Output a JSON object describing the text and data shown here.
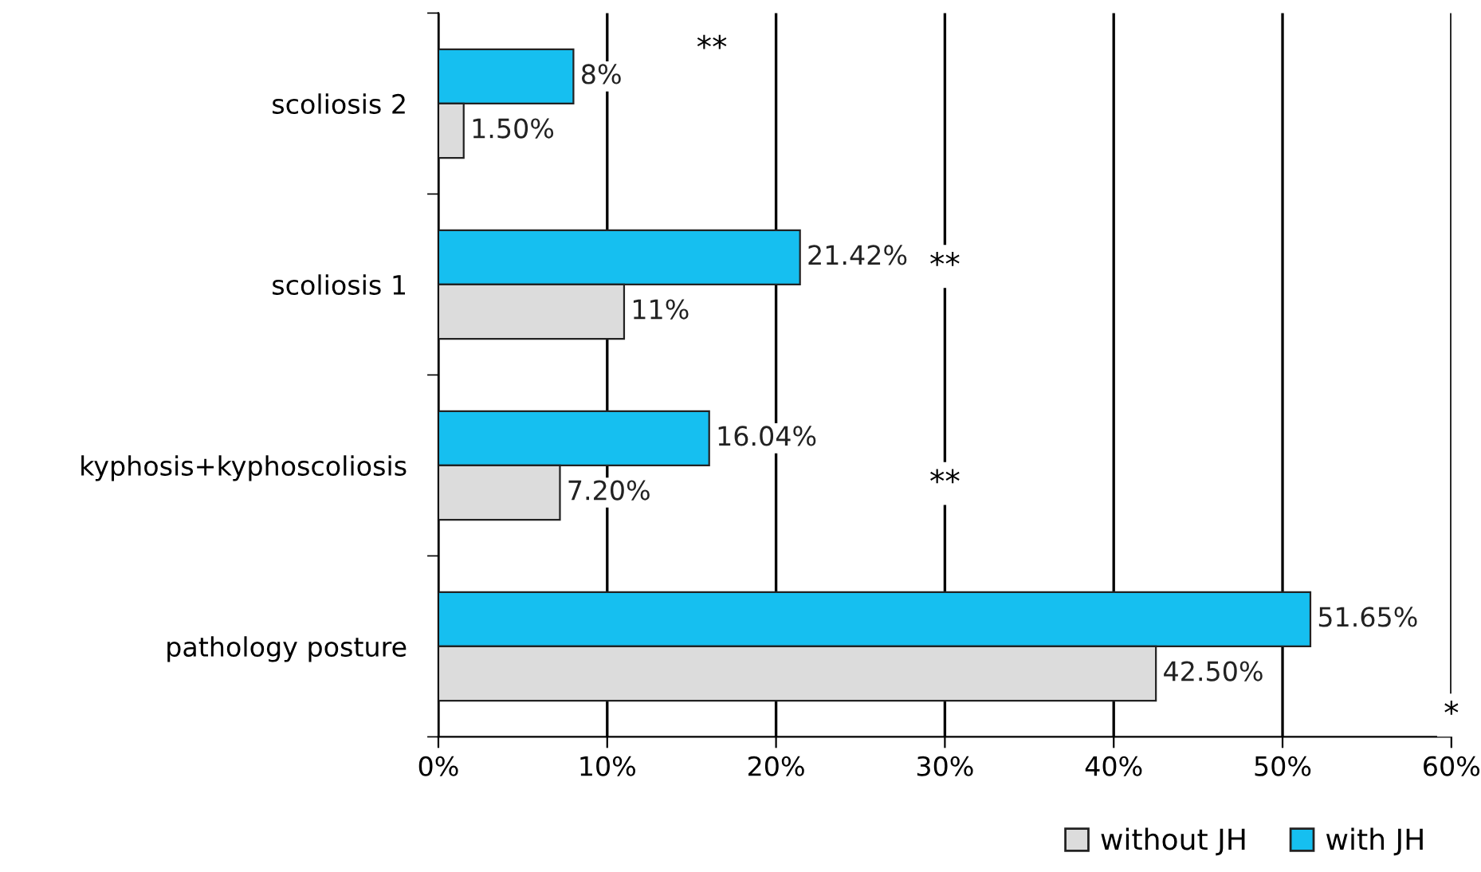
{
  "chart_data": {
    "type": "bar",
    "orientation": "horizontal",
    "categories": [
      "scoliosis 2",
      "scoliosis 1",
      "kyphosis+kyphoscoliosis",
      "pathology posture"
    ],
    "series": [
      {
        "name": "with JH",
        "color": "#16bff0",
        "values": [
          8,
          21.42,
          16.04,
          51.65
        ],
        "value_labels": [
          "8%",
          "21.42%",
          "16.04%",
          "51.65%"
        ]
      },
      {
        "name": "without JH",
        "color": "#dcdcdc",
        "values": [
          1.5,
          11,
          7.2,
          42.5
        ],
        "value_labels": [
          "1.50%",
          "11%",
          "7.20%",
          "42.50%"
        ]
      }
    ],
    "xlim": [
      0,
      60
    ],
    "xticks": [
      {
        "value": 0,
        "label": "0%"
      },
      {
        "value": 10,
        "label": "10%"
      },
      {
        "value": 20,
        "label": "20%"
      },
      {
        "value": 30,
        "label": "30%"
      },
      {
        "value": 40,
        "label": "40%"
      },
      {
        "value": 50,
        "label": "50%"
      },
      {
        "value": 60,
        "label": "60%"
      }
    ],
    "grid": "x",
    "legend": "bottom right",
    "annotations": [
      "**",
      "**",
      "**",
      "*"
    ]
  }
}
